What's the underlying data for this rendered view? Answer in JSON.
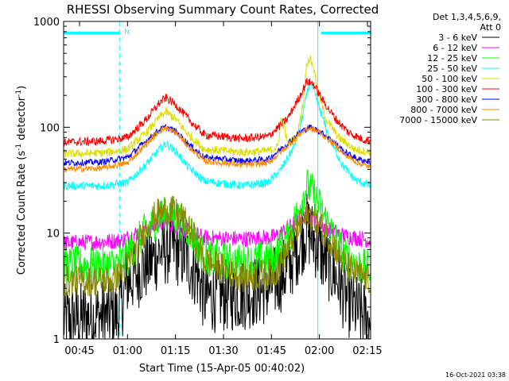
{
  "chart_data": {
    "type": "line",
    "title": "RHESSI Observing Summary Count Rates, Corrected",
    "xlabel": "Start Time (15-Apr-05 00:40:02)",
    "ylabel_main": "Corrected Count Rate (s",
    "ylabel_sup1": "-1",
    "ylabel_mid": " detector",
    "ylabel_sup2": "-1",
    "ylabel_end": ")",
    "x_unit": "minutes since 00:00 UT",
    "xlim": [
      40.03,
      136.0
    ],
    "ylim": [
      1,
      1000
    ],
    "yscale": "log",
    "x_ticks": [
      {
        "value": 45,
        "label": "00:45"
      },
      {
        "value": 60,
        "label": "01:00"
      },
      {
        "value": 75,
        "label": "01:15"
      },
      {
        "value": 90,
        "label": "01:30"
      },
      {
        "value": 105,
        "label": "01:45"
      },
      {
        "value": 120,
        "label": "02:00"
      },
      {
        "value": 135,
        "label": "02:15"
      }
    ],
    "y_ticks": [
      {
        "value": 1,
        "label": "1"
      },
      {
        "value": 10,
        "label": "10"
      },
      {
        "value": 100,
        "label": "100"
      },
      {
        "value": 1000,
        "label": "1000"
      }
    ],
    "legend_header": [
      "Det 1,3,4,5,6,9,",
      "Att 0"
    ],
    "legend_position": "right",
    "night_markers": [
      57.5,
      119.5,
      136.0
    ],
    "night_marker_color": "#00ffff",
    "flag_bars": [
      [
        40.03,
        57.5
      ],
      [
        120.5,
        136.0
      ]
    ],
    "flag_label": {
      "text": "N",
      "x": 59.0
    },
    "footer_timestamp": "16-Oct-2021 03:38",
    "series": [
      {
        "name": "3 - 6 keV",
        "color": "#000000",
        "noise": 0.35,
        "points": [
          [
            40,
            1.5
          ],
          [
            48,
            1.6
          ],
          [
            56,
            1.7
          ],
          [
            57,
            1.6
          ],
          [
            60,
            3.5
          ],
          [
            66,
            5
          ],
          [
            70,
            6.5
          ],
          [
            74,
            7.5
          ],
          [
            78,
            6
          ],
          [
            82,
            4
          ],
          [
            84,
            2.5
          ],
          [
            95,
            2.6
          ],
          [
            104,
            3
          ],
          [
            110,
            4.5
          ],
          [
            114,
            8
          ],
          [
            116,
            11
          ],
          [
            118,
            9
          ],
          [
            121,
            6
          ],
          [
            125,
            4
          ],
          [
            128,
            2.5
          ],
          [
            132,
            1.8
          ],
          [
            136,
            1.5
          ]
        ]
      },
      {
        "name": "6 - 12 keV",
        "color": "#ff00ff",
        "noise": 0.08,
        "points": [
          [
            40,
            8
          ],
          [
            52,
            8.3
          ],
          [
            58,
            8.5
          ],
          [
            63,
            10
          ],
          [
            68,
            11.5
          ],
          [
            72,
            12.5
          ],
          [
            76,
            11.5
          ],
          [
            80,
            10
          ],
          [
            84,
            9
          ],
          [
            96,
            8.8
          ],
          [
            106,
            9.2
          ],
          [
            110,
            11
          ],
          [
            114,
            14
          ],
          [
            116,
            15
          ],
          [
            119,
            13
          ],
          [
            123,
            11
          ],
          [
            127,
            9.5
          ],
          [
            132,
            9
          ],
          [
            136,
            8.5
          ]
        ]
      },
      {
        "name": "12 - 25 keV",
        "color": "#00ff00",
        "noise": 0.18,
        "points": [
          [
            40,
            5
          ],
          [
            56,
            5
          ],
          [
            60,
            6
          ],
          [
            65,
            10
          ],
          [
            70,
            14
          ],
          [
            73,
            15.5
          ],
          [
            77,
            13
          ],
          [
            81,
            9
          ],
          [
            84,
            6
          ],
          [
            96,
            5.2
          ],
          [
            106,
            6
          ],
          [
            110,
            9
          ],
          [
            113,
            15
          ],
          [
            116,
            28
          ],
          [
            118,
            24
          ],
          [
            120,
            18
          ],
          [
            124,
            10
          ],
          [
            128,
            6
          ],
          [
            132,
            5
          ],
          [
            136,
            4.5
          ]
        ]
      },
      {
        "name": "25 - 50 keV",
        "color": "#00ffff",
        "noise": 0.04,
        "points": [
          [
            40,
            28
          ],
          [
            52,
            28
          ],
          [
            60,
            30
          ],
          [
            66,
            45
          ],
          [
            70,
            62
          ],
          [
            72,
            70
          ],
          [
            75,
            60
          ],
          [
            79,
            42
          ],
          [
            84,
            31
          ],
          [
            96,
            28
          ],
          [
            104,
            30
          ],
          [
            108,
            40
          ],
          [
            112,
            65
          ],
          [
            114,
            100
          ],
          [
            116,
            200
          ],
          [
            117,
            270
          ],
          [
            118,
            230
          ],
          [
            120,
            150
          ],
          [
            123,
            80
          ],
          [
            127,
            45
          ],
          [
            131,
            32
          ],
          [
            136,
            28
          ]
        ]
      },
      {
        "name": "50 - 100 keV",
        "color": "#dddd00",
        "noise": 0.04,
        "points": [
          [
            40,
            56
          ],
          [
            52,
            57
          ],
          [
            60,
            62
          ],
          [
            66,
            90
          ],
          [
            70,
            125
          ],
          [
            72,
            140
          ],
          [
            75,
            120
          ],
          [
            79,
            85
          ],
          [
            84,
            62
          ],
          [
            96,
            58
          ],
          [
            104,
            60
          ],
          [
            107,
            65
          ],
          [
            108,
            120
          ],
          [
            109,
            100
          ],
          [
            110,
            70
          ],
          [
            113,
            80
          ],
          [
            115,
            180
          ],
          [
            116,
            400
          ],
          [
            117,
            450
          ],
          [
            118,
            380
          ],
          [
            120,
            200
          ],
          [
            122,
            120
          ],
          [
            126,
            80
          ],
          [
            131,
            62
          ],
          [
            136,
            58
          ]
        ]
      },
      {
        "name": "100 - 300 keV",
        "color": "#ff0000",
        "noise": 0.04,
        "points": [
          [
            40,
            72
          ],
          [
            52,
            74
          ],
          [
            60,
            80
          ],
          [
            66,
            120
          ],
          [
            70,
            170
          ],
          [
            72,
            190
          ],
          [
            75,
            165
          ],
          [
            79,
            120
          ],
          [
            84,
            85
          ],
          [
            96,
            78
          ],
          [
            104,
            82
          ],
          [
            110,
            120
          ],
          [
            114,
            200
          ],
          [
            116,
            270
          ],
          [
            118,
            260
          ],
          [
            121,
            180
          ],
          [
            125,
            120
          ],
          [
            129,
            90
          ],
          [
            133,
            78
          ],
          [
            136,
            74
          ]
        ]
      },
      {
        "name": "300 - 800 keV",
        "color": "#0000ff",
        "noise": 0.03,
        "points": [
          [
            40,
            46
          ],
          [
            52,
            47
          ],
          [
            60,
            52
          ],
          [
            66,
            75
          ],
          [
            70,
            95
          ],
          [
            72,
            100
          ],
          [
            75,
            92
          ],
          [
            79,
            70
          ],
          [
            84,
            52
          ],
          [
            96,
            48
          ],
          [
            104,
            50
          ],
          [
            110,
            70
          ],
          [
            114,
            90
          ],
          [
            117,
            100
          ],
          [
            120,
            92
          ],
          [
            124,
            75
          ],
          [
            128,
            58
          ],
          [
            132,
            50
          ],
          [
            136,
            47
          ]
        ]
      },
      {
        "name": "800 - 7000 keV",
        "color": "#ff8800",
        "noise": 0.03,
        "points": [
          [
            40,
            40
          ],
          [
            52,
            41
          ],
          [
            60,
            46
          ],
          [
            66,
            70
          ],
          [
            70,
            92
          ],
          [
            72,
            98
          ],
          [
            75,
            90
          ],
          [
            79,
            66
          ],
          [
            84,
            48
          ],
          [
            96,
            44
          ],
          [
            104,
            46
          ],
          [
            110,
            66
          ],
          [
            114,
            88
          ],
          [
            117,
            98
          ],
          [
            120,
            90
          ],
          [
            124,
            72
          ],
          [
            128,
            55
          ],
          [
            132,
            46
          ],
          [
            136,
            42
          ]
        ]
      },
      {
        "name": "7000 - 15000 keV",
        "color": "#888800",
        "noise": 0.15,
        "points": [
          [
            40,
            3.5
          ],
          [
            56,
            3.6
          ],
          [
            60,
            5
          ],
          [
            65,
            10
          ],
          [
            69,
            15
          ],
          [
            73,
            17
          ],
          [
            77,
            14
          ],
          [
            81,
            9
          ],
          [
            84,
            5.5
          ],
          [
            96,
            3.8
          ],
          [
            106,
            4.2
          ],
          [
            110,
            7
          ],
          [
            114,
            12
          ],
          [
            117,
            15
          ],
          [
            120,
            12
          ],
          [
            124,
            8
          ],
          [
            128,
            5
          ],
          [
            132,
            4
          ],
          [
            136,
            3.6
          ]
        ]
      }
    ]
  }
}
